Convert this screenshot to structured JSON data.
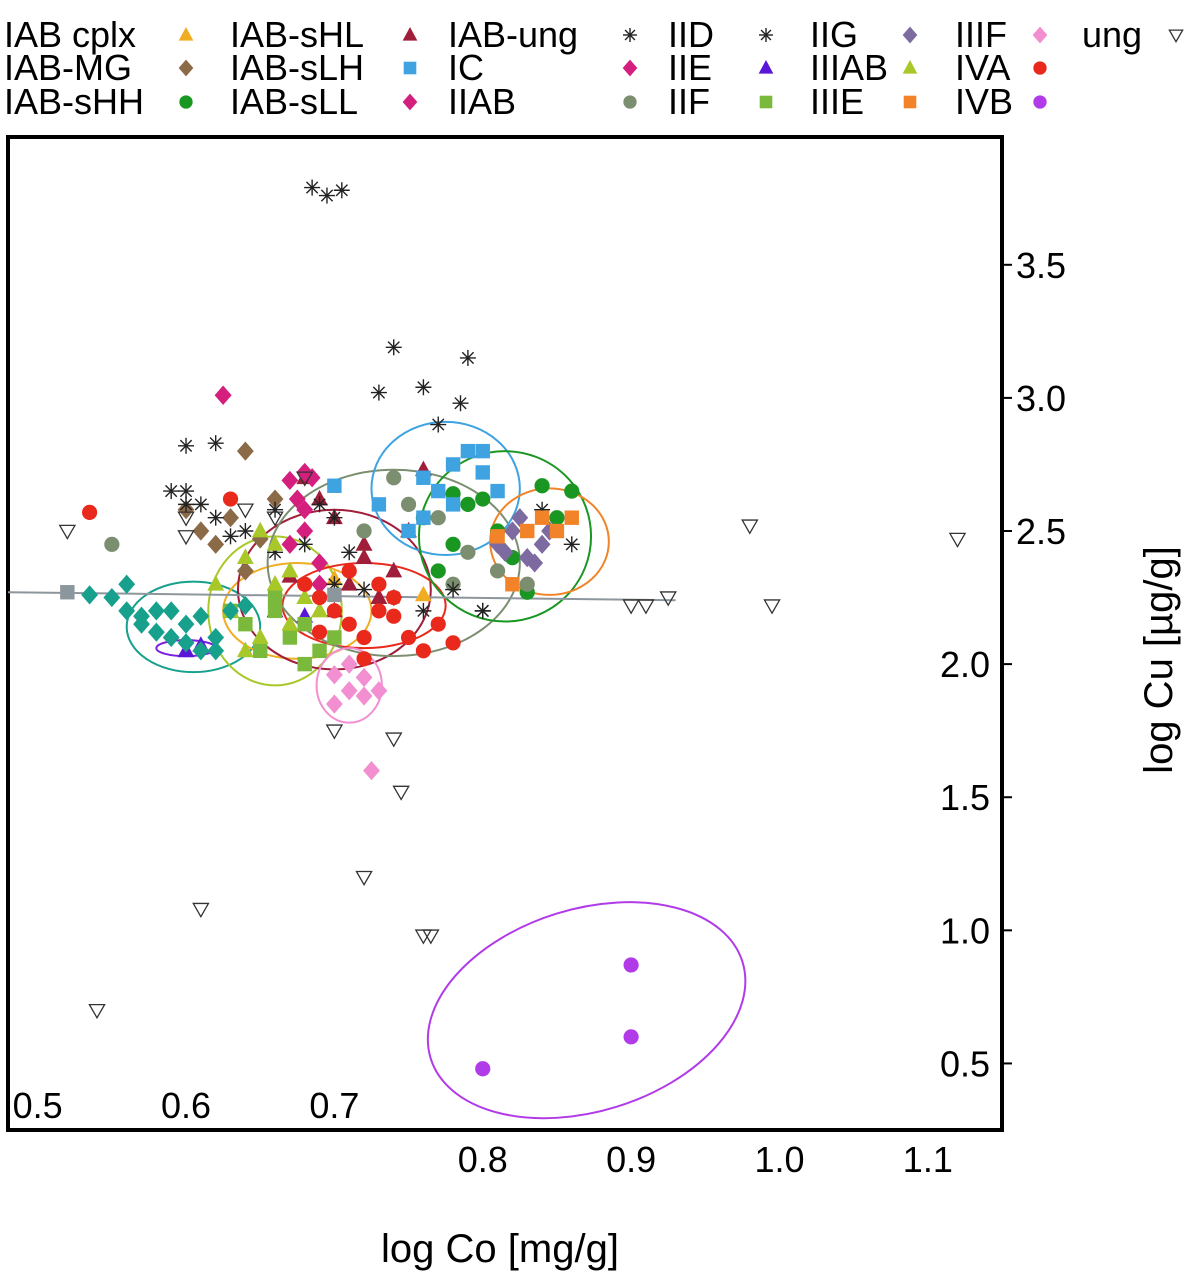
{
  "chart_data": {
    "type": "scatter",
    "title": "",
    "xlabel": "log Co [mg/g]",
    "ylabel": "log Cu [µg/g]",
    "xlim": [
      0.48,
      1.15
    ],
    "ylim": [
      0.25,
      3.98
    ],
    "x_ticks": [
      {
        "value": 0.5,
        "label": "0.5"
      },
      {
        "value": 0.6,
        "label": "0.6"
      },
      {
        "value": 0.7,
        "label": "0.7"
      },
      {
        "value": 0.8,
        "label": "0.8"
      },
      {
        "value": 0.9,
        "label": "0.9"
      },
      {
        "value": 1.0,
        "label": "1.0"
      },
      {
        "value": 1.1,
        "label": "1.1"
      }
    ],
    "y_ticks": [
      {
        "value": 0.5,
        "label": "0.5"
      },
      {
        "value": 1.0,
        "label": "1.0"
      },
      {
        "value": 1.5,
        "label": "1.5"
      },
      {
        "value": 2.0,
        "label": "2.0"
      },
      {
        "value": 2.5,
        "label": "2.5"
      },
      {
        "value": 3.0,
        "label": "3.0"
      },
      {
        "value": 3.5,
        "label": "3.5"
      }
    ],
    "grid": false,
    "legend_placement": "top",
    "trend_line": {
      "x": [
        0.48,
        0.93
      ],
      "y": [
        2.27,
        2.24
      ],
      "color": "#8c969d"
    },
    "series": [
      {
        "name": "IAB cplx",
        "marker": "triangle",
        "color": "#f0ad22",
        "x": [
          0.66,
          0.67,
          0.69,
          0.7,
          0.76
        ],
        "y": [
          2.28,
          2.35,
          2.2,
          2.32,
          2.26
        ]
      },
      {
        "name": "IAB-MG",
        "marker": "diamond",
        "color": "#8b6a48",
        "x": [
          0.6,
          0.61,
          0.62,
          0.63,
          0.64,
          0.65,
          0.66,
          0.64
        ],
        "y": [
          2.58,
          2.5,
          2.45,
          2.55,
          2.8,
          2.47,
          2.62,
          2.35
        ]
      },
      {
        "name": "IAB-sHH",
        "marker": "circle",
        "color": "#1a9622",
        "x": [
          0.76,
          0.78,
          0.79,
          0.8,
          0.81,
          0.84,
          0.86,
          0.78,
          0.82,
          0.77,
          0.85,
          0.83
        ],
        "y": [
          2.55,
          2.45,
          2.6,
          2.62,
          2.5,
          2.67,
          2.65,
          2.64,
          2.4,
          2.35,
          2.55,
          2.27
        ]
      },
      {
        "name": "IAB-sHL",
        "marker": "triangle",
        "color": "#a11e3a",
        "x": [
          0.68,
          0.7,
          0.72,
          0.74,
          0.71,
          0.69,
          0.73,
          0.76,
          0.75,
          0.7,
          0.72,
          0.67
        ],
        "y": [
          2.7,
          2.55,
          2.4,
          2.35,
          2.3,
          2.62,
          2.25,
          2.73,
          2.5,
          2.2,
          2.45,
          2.33
        ]
      },
      {
        "name": "IAB-sLH",
        "marker": "square",
        "color": "#3ea3e0",
        "x": [
          0.7,
          0.73,
          0.75,
          0.76,
          0.77,
          0.78,
          0.79,
          0.8,
          0.81,
          0.78,
          0.76,
          0.8
        ],
        "y": [
          2.67,
          2.6,
          2.5,
          2.7,
          2.65,
          2.6,
          2.8,
          2.8,
          2.65,
          2.75,
          2.55,
          2.72
        ]
      },
      {
        "name": "IAB-sLL",
        "marker": "diamond",
        "color": "#d51f7e",
        "x": [
          0.625,
          0.67,
          0.675,
          0.68,
          0.69,
          0.685,
          0.67,
          0.69,
          0.68
        ],
        "y": [
          3.01,
          2.69,
          2.62,
          2.5,
          2.38,
          2.7,
          2.45,
          2.3,
          2.58
        ]
      },
      {
        "name": "IAB-ung",
        "marker": "asterisk",
        "color": "#222222",
        "x": [
          0.685,
          0.695,
          0.705,
          0.6,
          0.62,
          0.74,
          0.79,
          0.73,
          0.76,
          0.77,
          0.785,
          0.7,
          0.71,
          0.69,
          0.66,
          0.68,
          0.84,
          0.86,
          0.8,
          0.6,
          0.63,
          0.61
        ],
        "y": [
          3.79,
          3.76,
          3.78,
          2.82,
          2.83,
          3.19,
          3.15,
          3.02,
          3.04,
          2.9,
          2.98,
          2.55,
          2.42,
          2.6,
          2.58,
          2.45,
          2.58,
          2.45,
          2.2,
          2.65,
          2.48,
          2.6
        ]
      },
      {
        "name": "IC",
        "marker": "diamond",
        "color": "#d51f7e",
        "x": [
          0.625,
          0.68
        ],
        "y": [
          3.01,
          2.72
        ]
      },
      {
        "name": "IIAB",
        "marker": "circle",
        "color": "#7b8f70",
        "x": [
          0.55,
          0.75,
          0.77,
          0.79,
          0.81,
          0.83,
          0.74,
          0.72,
          0.78
        ],
        "y": [
          2.45,
          2.6,
          2.55,
          2.42,
          2.35,
          2.3,
          2.7,
          2.5,
          2.3
        ]
      },
      {
        "name": "IID",
        "marker": "asterisk",
        "color": "#222222",
        "x": [
          0.59,
          0.6,
          0.62,
          0.64,
          0.66,
          0.7,
          0.72,
          0.74,
          0.76,
          0.78,
          0.8
        ],
        "y": [
          2.65,
          2.6,
          2.55,
          2.5,
          2.42,
          2.3,
          2.28,
          2.25,
          2.2,
          2.28,
          2.2
        ]
      },
      {
        "name": "IIE",
        "marker": "triangle",
        "color": "#5b17d8",
        "x": [
          0.6,
          0.61,
          0.66,
          0.68
        ],
        "y": [
          2.05,
          2.07,
          2.2,
          2.18
        ]
      },
      {
        "name": "IIF",
        "marker": "square",
        "color": "#7ab93c",
        "x": [
          0.64,
          0.65,
          0.66,
          0.67,
          0.68,
          0.69,
          0.7,
          0.66,
          0.68,
          0.63
        ],
        "y": [
          2.15,
          2.05,
          2.2,
          2.1,
          2.15,
          2.05,
          2.1,
          2.25,
          2.0,
          2.2
        ]
      },
      {
        "name": "IIG",
        "marker": "diamond",
        "color": "#7d6aa1",
        "x": [
          0.81,
          0.82,
          0.83,
          0.84,
          0.825,
          0.835,
          0.845,
          0.815
        ],
        "y": [
          2.45,
          2.5,
          2.4,
          2.45,
          2.55,
          2.38,
          2.5,
          2.42
        ]
      },
      {
        "name": "IIIAB",
        "marker": "triangle",
        "color": "#a8c82a",
        "x": [
          0.62,
          0.63,
          0.64,
          0.65,
          0.66,
          0.67,
          0.68,
          0.69,
          0.65,
          0.67,
          0.64,
          0.66
        ],
        "y": [
          2.3,
          2.2,
          2.4,
          2.5,
          2.45,
          2.35,
          2.25,
          2.2,
          2.1,
          2.15,
          2.05,
          2.3
        ]
      },
      {
        "name": "IIIE",
        "marker": "square",
        "color": "#f28328",
        "x": [
          0.82,
          0.83,
          0.84,
          0.85,
          0.86,
          0.81
        ],
        "y": [
          2.3,
          2.5,
          2.55,
          2.5,
          2.55,
          2.48
        ]
      },
      {
        "name": "IIIF",
        "marker": "diamond",
        "color": "#f28fd0",
        "x": [
          0.7,
          0.71,
          0.72,
          0.73,
          0.71,
          0.72,
          0.7,
          0.725
        ],
        "y": [
          1.85,
          1.9,
          1.95,
          1.9,
          2.0,
          1.88,
          1.96,
          1.6
        ]
      },
      {
        "name": "IVA",
        "marker": "circle",
        "color": "#e8291c",
        "x": [
          0.535,
          0.63,
          0.68,
          0.69,
          0.7,
          0.71,
          0.72,
          0.73,
          0.74,
          0.75,
          0.76,
          0.77,
          0.78,
          0.71,
          0.73,
          0.69,
          0.72,
          0.74
        ],
        "y": [
          2.57,
          2.62,
          2.3,
          2.25,
          2.2,
          2.15,
          2.1,
          2.2,
          2.25,
          2.1,
          2.05,
          2.15,
          2.08,
          2.35,
          2.3,
          2.12,
          2.02,
          2.18
        ]
      },
      {
        "name": "IVB",
        "marker": "circle",
        "color": "#b13be8",
        "x": [
          0.8,
          0.9,
          0.9
        ],
        "y": [
          0.48,
          0.6,
          0.87
        ]
      },
      {
        "name": "ung",
        "marker": "triangle-down-open",
        "color": "#333333",
        "x": [
          0.52,
          0.54,
          0.6,
          0.61,
          0.7,
          0.72,
          0.74,
          0.745,
          0.76,
          0.765,
          0.9,
          0.91,
          0.925,
          0.98,
          0.995,
          1.12,
          0.68,
          0.66,
          0.6,
          0.64
        ],
        "y": [
          2.5,
          0.7,
          2.55,
          1.08,
          1.75,
          1.2,
          1.72,
          1.52,
          0.98,
          0.98,
          2.22,
          2.22,
          2.25,
          2.52,
          2.22,
          2.47,
          2.7,
          2.55,
          2.48,
          2.58
        ]
      },
      {
        "name": "",
        "marker": "diamond",
        "color": "#17a18c",
        "x": [
          0.535,
          0.55,
          0.56,
          0.57,
          0.58,
          0.59,
          0.6,
          0.61,
          0.62,
          0.63,
          0.57,
          0.59,
          0.61,
          0.6,
          0.58,
          0.62,
          0.64,
          0.56
        ],
        "y": [
          2.26,
          2.25,
          2.3,
          2.18,
          2.2,
          2.1,
          2.15,
          2.05,
          2.1,
          2.2,
          2.15,
          2.2,
          2.18,
          2.08,
          2.12,
          2.05,
          2.22,
          2.2
        ]
      },
      {
        "name": "",
        "marker": "square",
        "color": "#8c969d",
        "x": [
          0.52,
          0.7
        ],
        "y": [
          2.27,
          2.26
        ]
      }
    ],
    "ellipses": [
      {
        "cx": 0.605,
        "cy": 2.14,
        "rx": 0.045,
        "ry": 0.17,
        "angle": 0,
        "color": "#17a18c"
      },
      {
        "cx": 0.6,
        "cy": 2.06,
        "rx": 0.02,
        "ry": 0.03,
        "angle": 0,
        "color": "#7b1fe0"
      },
      {
        "cx": 0.66,
        "cy": 2.2,
        "rx": 0.045,
        "ry": 0.28,
        "angle": 0,
        "color": "#a8c82a"
      },
      {
        "cx": 0.675,
        "cy": 2.2,
        "rx": 0.05,
        "ry": 0.18,
        "angle": 0,
        "color": "#f0ad22"
      },
      {
        "cx": 0.7,
        "cy": 2.28,
        "rx": 0.065,
        "ry": 0.3,
        "angle": 0,
        "color": "#a11e3a"
      },
      {
        "cx": 0.72,
        "cy": 2.22,
        "rx": 0.055,
        "ry": 0.16,
        "angle": 0,
        "color": "#e8291c"
      },
      {
        "cx": 0.74,
        "cy": 2.38,
        "rx": 0.085,
        "ry": 0.35,
        "angle": 0,
        "color": "#7b8f70"
      },
      {
        "cx": 0.71,
        "cy": 1.92,
        "rx": 0.022,
        "ry": 0.14,
        "angle": 0,
        "color": "#f28fd0"
      },
      {
        "cx": 0.775,
        "cy": 2.66,
        "rx": 0.05,
        "ry": 0.25,
        "angle": 0,
        "color": "#3ea3e0"
      },
      {
        "cx": 0.815,
        "cy": 2.48,
        "rx": 0.058,
        "ry": 0.32,
        "angle": 0,
        "color": "#1a9622"
      },
      {
        "cx": 0.845,
        "cy": 2.46,
        "rx": 0.04,
        "ry": 0.2,
        "angle": 0,
        "color": "#f28328"
      },
      {
        "cx": 0.87,
        "cy": 0.7,
        "rx": 0.11,
        "ry": 0.38,
        "angle": -0.1,
        "color": "#b13be8"
      }
    ]
  }
}
